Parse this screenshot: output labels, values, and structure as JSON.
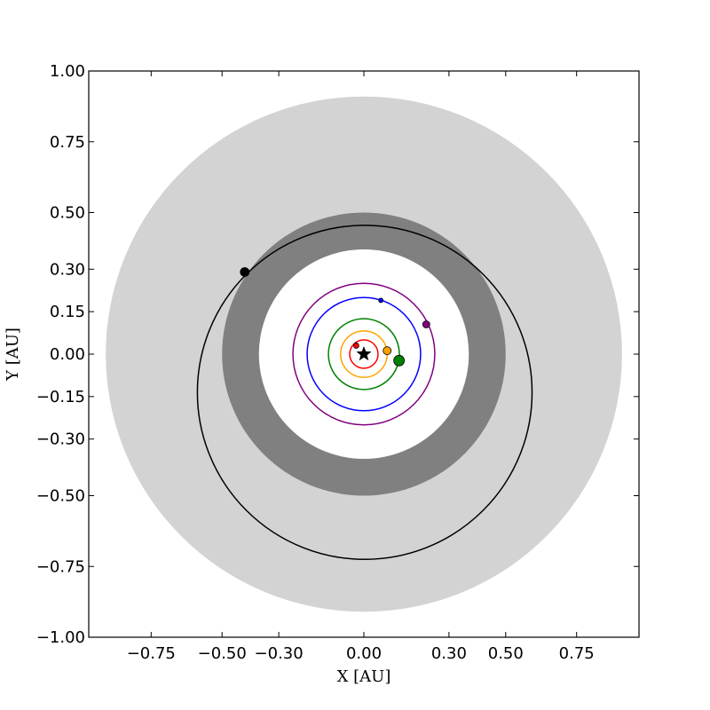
{
  "chart_data": {
    "type": "scatter",
    "title": "",
    "xlabel": "X [AU]",
    "ylabel": "Y [AU]",
    "xlim": [
      -0.97,
      0.97
    ],
    "ylim": [
      -1.0,
      1.0
    ],
    "x_ticks": [
      {
        "value": -0.75,
        "label": "−0.75"
      },
      {
        "value": -0.5,
        "label": "−0.50"
      },
      {
        "value": -0.3,
        "label": "−0.30"
      },
      {
        "value": 0.0,
        "label": "0.00"
      },
      {
        "value": 0.3,
        "label": "0.30"
      },
      {
        "value": 0.5,
        "label": "0.50"
      },
      {
        "value": 0.75,
        "label": "0.75"
      }
    ],
    "y_ticks": [
      {
        "value": 1.0,
        "label": "1.00"
      },
      {
        "value": 0.75,
        "label": "0.75"
      },
      {
        "value": 0.5,
        "label": "0.50"
      },
      {
        "value": 0.3,
        "label": "0.30"
      },
      {
        "value": 0.15,
        "label": "0.15"
      },
      {
        "value": 0.0,
        "label": "0.00"
      },
      {
        "value": -0.15,
        "label": "−0.15"
      },
      {
        "value": -0.3,
        "label": "−0.30"
      },
      {
        "value": -0.5,
        "label": "−0.50"
      },
      {
        "value": -0.75,
        "label": "−0.75"
      },
      {
        "value": -1.0,
        "label": "−1.00"
      }
    ],
    "zones": [
      {
        "inner": 0.0,
        "outer": 0.91,
        "color": "#d3d3d3"
      },
      {
        "inner": 0.0,
        "outer": 0.5,
        "color": "#808080"
      },
      {
        "inner": 0.0,
        "outer": 0.37,
        "color": "#ffffff"
      }
    ],
    "star": {
      "x": 0.0,
      "y": 0.0
    },
    "orbits": [
      {
        "cx": 0.0,
        "cy": 0.0,
        "r": 0.05,
        "color": "#ff0000"
      },
      {
        "cx": 0.0,
        "cy": 0.0,
        "r": 0.082,
        "color": "#ffa500"
      },
      {
        "cx": 0.0,
        "cy": 0.0,
        "r": 0.125,
        "color": "#008000"
      },
      {
        "cx": 0.0,
        "cy": 0.0,
        "r": 0.2,
        "color": "#0000ff"
      },
      {
        "cx": 0.0,
        "cy": 0.0,
        "r": 0.25,
        "color": "#800080"
      },
      {
        "cx": 0.003,
        "cy": -0.135,
        "r": 0.59,
        "color": "#000000"
      }
    ],
    "planets": [
      {
        "x": -0.027,
        "y": 0.03,
        "color": "#ff0000",
        "size": 6
      },
      {
        "x": 0.082,
        "y": 0.012,
        "color": "#ffa500",
        "size": 9
      },
      {
        "x": 0.124,
        "y": -0.023,
        "color": "#008000",
        "size": 12
      },
      {
        "x": 0.06,
        "y": 0.19,
        "color": "#0000ff",
        "size": 5
      },
      {
        "x": 0.22,
        "y": 0.105,
        "color": "#800080",
        "size": 8
      },
      {
        "x": -0.42,
        "y": 0.29,
        "color": "#000000",
        "size": 10
      }
    ]
  }
}
